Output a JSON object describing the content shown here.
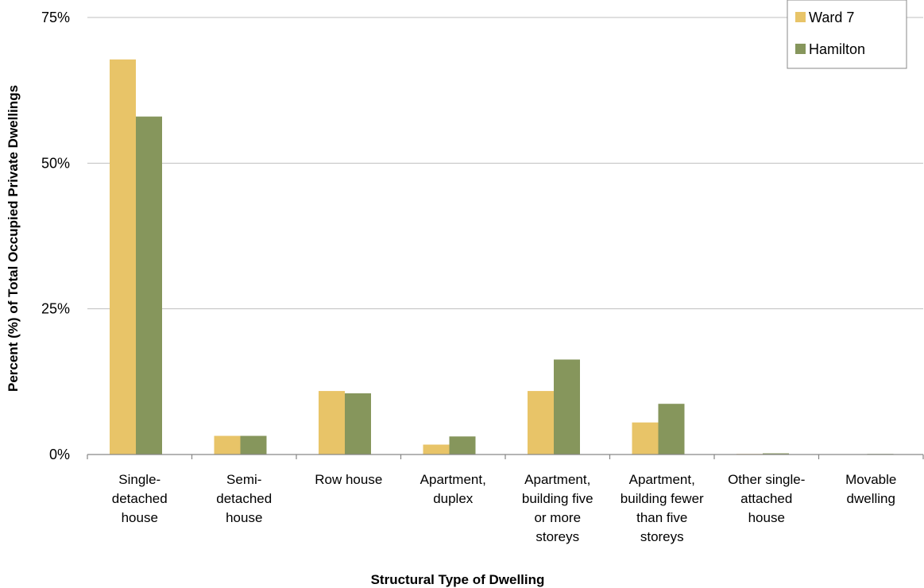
{
  "chart_data": {
    "type": "bar",
    "xlabel": "Structural Type of Dwelling",
    "ylabel": "Percent (%) of Total Occupied Private Dwellings",
    "ylim": [
      0,
      75
    ],
    "yticks": [
      "0%",
      "25%",
      "50%",
      "75%"
    ],
    "ytick_values": [
      0,
      25,
      50,
      75
    ],
    "grid": true,
    "legend_position": "top-right",
    "categories": [
      [
        "Single-",
        "detached",
        "house"
      ],
      [
        "Semi-",
        "detached",
        "house"
      ],
      [
        "Row house"
      ],
      [
        "Apartment,",
        "duplex"
      ],
      [
        "Apartment,",
        "building five",
        "or more",
        "storeys"
      ],
      [
        "Apartment,",
        "building fewer",
        "than five",
        "storeys"
      ],
      [
        "Other single-",
        "attached",
        "house"
      ],
      [
        "Movable",
        "dwelling"
      ]
    ],
    "series": [
      {
        "name": "Ward 7",
        "color": "#E8C468",
        "values": [
          67.8,
          3.2,
          10.9,
          1.7,
          10.9,
          5.5,
          0.1,
          0.0
        ]
      },
      {
        "name": "Hamilton",
        "color": "#86965C",
        "values": [
          58.0,
          3.2,
          10.5,
          3.1,
          16.3,
          8.7,
          0.2,
          0.1
        ]
      }
    ]
  }
}
